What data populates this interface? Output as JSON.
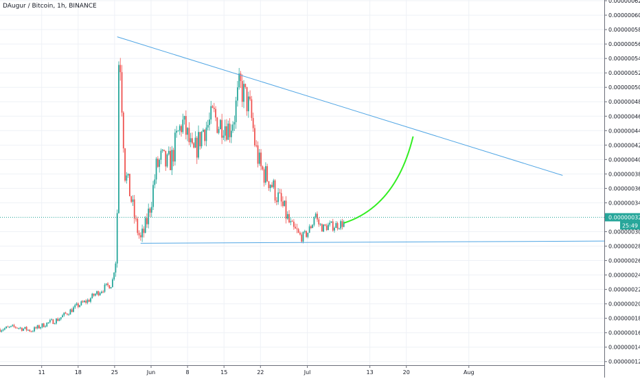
{
  "header": {
    "title": "DAugur / Bitcoin, 1h, BINANCE"
  },
  "colors": {
    "up": "#26a69a",
    "down": "#ef5350",
    "grid": "#eef1f6",
    "axis_text": "#131722",
    "axis_line": "#6a6d78",
    "trendline": "#4fa5e4",
    "projection": "#33ee22",
    "price_line": "#26a69a",
    "price_label_bg": "#26a69a",
    "countdown_bg": "#26a69a",
    "price_label_text": "#ffffff"
  },
  "chart_data": {
    "type": "candlestick",
    "title": "DAugur / Bitcoin, 1h, BINANCE",
    "price_axis": {
      "ticks": [
        "0.00000062",
        "0.00000060",
        "0.00000058",
        "0.00000056",
        "0.00000054",
        "0.00000052",
        "0.00000050",
        "0.00000048",
        "0.00000046",
        "0.00000044",
        "0.00000042",
        "0.00000040",
        "0.00000038",
        "0.00000036",
        "0.00000034",
        "0.00000030",
        "0.00000028",
        "0.00000026",
        "0.00000024",
        "0.00000022",
        "0.00000020",
        "0.00000018",
        "0.00000016",
        "0.00000014",
        "0.00000012"
      ],
      "ylim": [
        1.15e-07,
        6.21e-07
      ]
    },
    "time_axis": {
      "ticks": [
        "11",
        "18",
        "25",
        "Jun",
        "8",
        "15",
        "22",
        "Jul",
        "13",
        "20",
        "Aug"
      ],
      "tick_days": [
        11,
        18,
        25,
        32,
        39,
        46,
        53,
        62,
        74,
        81,
        93
      ],
      "unit": "day (May 1 = 1)",
      "xlim": [
        3,
        119
      ]
    },
    "current_price": {
      "value": "0.00000032",
      "price": 3.2e-07,
      "countdown": "25:49"
    },
    "price_path": [
      [
        3,
        1.65e-07
      ],
      [
        6,
        1.68e-07
      ],
      [
        9,
        1.63e-07
      ],
      [
        12,
        1.73e-07
      ],
      [
        14,
        1.78e-07
      ],
      [
        16,
        1.88e-07
      ],
      [
        18,
        1.98e-07
      ],
      [
        20,
        2.05e-07
      ],
      [
        21,
        2.12e-07
      ],
      [
        23,
        2.22e-07
      ],
      [
        24.5,
        2.28e-07
      ],
      [
        25.2,
        2.62e-07
      ],
      [
        25.5,
        3.28e-07
      ],
      [
        25.7,
        5.28e-07
      ],
      [
        26,
        5.52e-07
      ],
      [
        26.5,
        4.62e-07
      ],
      [
        27,
        3.82e-07
      ],
      [
        28,
        3.52e-07
      ],
      [
        29,
        3.12e-07
      ],
      [
        30,
        2.88e-07
      ],
      [
        31,
        3.08e-07
      ],
      [
        32,
        3.42e-07
      ],
      [
        33,
        3.88e-07
      ],
      [
        34,
        4.02e-07
      ],
      [
        35,
        3.92e-07
      ],
      [
        36,
        4.02e-07
      ],
      [
        37,
        4.32e-07
      ],
      [
        38,
        4.52e-07
      ],
      [
        39,
        4.32e-07
      ],
      [
        40,
        4.05e-07
      ],
      [
        41,
        4.22e-07
      ],
      [
        42,
        4.42e-07
      ],
      [
        43,
        4.48e-07
      ],
      [
        44,
        4.62e-07
      ],
      [
        45,
        4.48e-07
      ],
      [
        46,
        4.52e-07
      ],
      [
        47,
        4.42e-07
      ],
      [
        48,
        4.62e-07
      ],
      [
        49,
        5.02e-07
      ],
      [
        50,
        4.88e-07
      ],
      [
        51,
        4.68e-07
      ],
      [
        51.6,
        4.42e-07
      ],
      [
        52,
        4.18e-07
      ],
      [
        53,
        3.88e-07
      ],
      [
        54,
        3.78e-07
      ],
      [
        55,
        3.68e-07
      ],
      [
        56,
        3.52e-07
      ],
      [
        57,
        3.38e-07
      ],
      [
        58,
        3.22e-07
      ],
      [
        59,
        3.02e-07
      ],
      [
        60,
        2.98e-07
      ],
      [
        61,
        2.92e-07
      ],
      [
        62,
        2.98e-07
      ],
      [
        63,
        3.12e-07
      ],
      [
        63.5,
        3.28e-07
      ],
      [
        64,
        3.12e-07
      ],
      [
        65,
        3.05e-07
      ],
      [
        66,
        3.08e-07
      ],
      [
        67,
        3.08e-07
      ],
      [
        68,
        3.1e-07
      ],
      [
        69,
        3.12e-07
      ]
    ],
    "drawings": [
      {
        "name": "descending-trendline",
        "from": [
          25.5,
          5.7e-07
        ],
        "to": [
          111,
          3.78e-07
        ]
      },
      {
        "name": "support-line",
        "from": [
          30,
          2.84e-07
        ],
        "to": [
          119,
          2.87e-07
        ]
      },
      {
        "name": "projection-curve",
        "from": [
          69,
          3.12e-07
        ],
        "via": [
          79,
          3.35e-07
        ],
        "to": [
          82.3,
          4.32e-07
        ]
      }
    ]
  }
}
